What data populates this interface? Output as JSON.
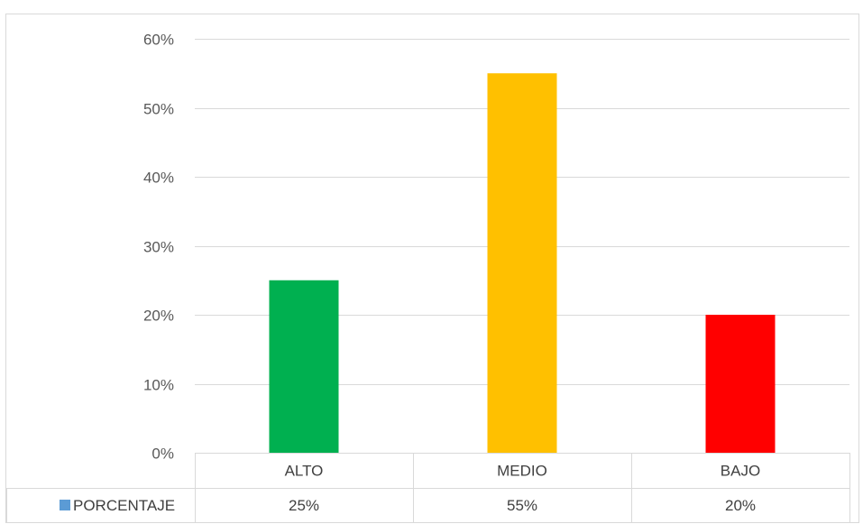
{
  "chart_data": {
    "type": "bar",
    "categories": [
      "ALTO",
      "MEDIO",
      "BAJO"
    ],
    "series": [
      {
        "name": "PORCENTAJE",
        "values": [
          25,
          55,
          20
        ],
        "value_labels": [
          "25%",
          "55%",
          "20%"
        ],
        "bar_colors": [
          "#00B050",
          "#FFC000",
          "#FF0000"
        ],
        "legend_color": "#5B9BD5"
      }
    ],
    "ylim": [
      0,
      60
    ],
    "yticks": [
      0,
      10,
      20,
      30,
      40,
      50,
      60
    ],
    "ytick_labels": [
      "0%",
      "10%",
      "20%",
      "30%",
      "40%",
      "50%",
      "60%"
    ],
    "grid": true,
    "data_table": true,
    "title": "",
    "xlabel": "",
    "ylabel": ""
  }
}
